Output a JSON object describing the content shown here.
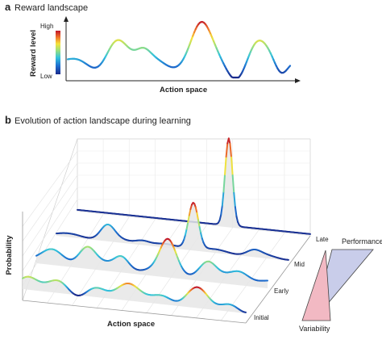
{
  "panel_a": {
    "letter": "a",
    "title": "Reward landscape",
    "colorbar_high": "High",
    "colorbar_low": "Low",
    "ylabel": "Reward level",
    "xlabel": "Action space"
  },
  "panel_b": {
    "letter": "b",
    "title": "Evolution of action landscape during learning",
    "ylabel": "Probability",
    "xlabel": "Action space",
    "stages": [
      "Late",
      "Mid",
      "Early",
      "Initial"
    ],
    "performance_label": "Performance",
    "variability_label": "Variability"
  },
  "colors": {
    "jet_low": "#1a2a8c",
    "jet_high": "#c0152a",
    "performance_fill": "#c9cdea",
    "variability_fill": "#f2b9c3",
    "fill_gray": "#e6e6e6"
  }
}
